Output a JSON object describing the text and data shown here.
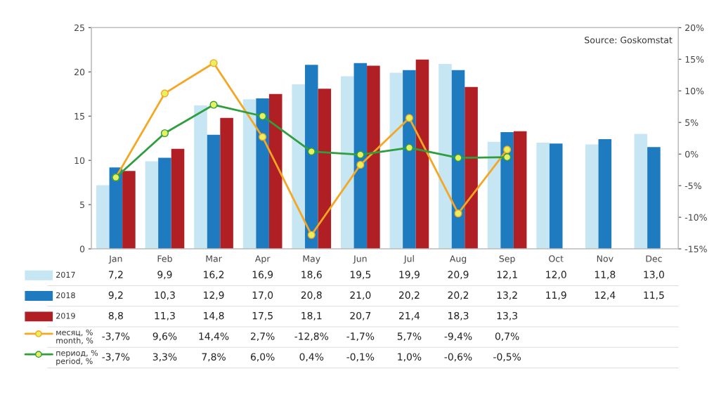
{
  "chart_data": {
    "type": "bar",
    "categories": [
      "Jan",
      "Feb",
      "Mar",
      "Apr",
      "May",
      "Jun",
      "Jul",
      "Aug",
      "Sep",
      "Oct",
      "Nov",
      "Dec"
    ],
    "series": [
      {
        "name": "2017",
        "color": "#c5e6f2",
        "values": [
          7.2,
          9.9,
          16.2,
          16.9,
          18.6,
          19.5,
          19.9,
          20.9,
          12.1,
          12.0,
          11.8,
          13.0
        ],
        "value_labels": [
          "7,2",
          "9,9",
          "16,2",
          "16,9",
          "18,6",
          "19,5",
          "19,9",
          "20,9",
          "12,1",
          "12,0",
          "11,8",
          "13,0"
        ]
      },
      {
        "name": "2018",
        "color": "#1f7bc0",
        "values": [
          9.2,
          10.3,
          12.9,
          17.0,
          20.8,
          21.0,
          20.2,
          20.2,
          13.2,
          11.9,
          12.4,
          11.5
        ],
        "value_labels": [
          "9,2",
          "10,3",
          "12,9",
          "17,0",
          "20,8",
          "21,0",
          "20,2",
          "20,2",
          "13,2",
          "11,9",
          "12,4",
          "11,5"
        ]
      },
      {
        "name": "2019",
        "color": "#b01f24",
        "values": [
          8.8,
          11.3,
          14.8,
          17.5,
          18.1,
          20.7,
          21.4,
          18.3,
          13.3,
          null,
          null,
          null
        ],
        "value_labels": [
          "8,8",
          "11,3",
          "14,8",
          "17,5",
          "18,1",
          "20,7",
          "21,4",
          "18,3",
          "13,3",
          null,
          null,
          null
        ]
      },
      {
        "name": "месяц, %\nmonth, %",
        "type": "line",
        "axis": "y2",
        "color": "#f5a623",
        "marker": "circle",
        "values": [
          -3.7,
          9.6,
          14.4,
          2.7,
          -12.8,
          -1.7,
          5.7,
          -9.4,
          0.7,
          null,
          null,
          null
        ],
        "value_labels": [
          "-3,7%",
          "9,6%",
          "14,4%",
          "2,7%",
          "-12,8%",
          "-1,7%",
          "5,7%",
          "-9,4%",
          "0,7%",
          null,
          null,
          null
        ]
      },
      {
        "name": "период, %\nperiod, %",
        "type": "line",
        "axis": "y2",
        "color": "#2e9e3e",
        "marker": "circle",
        "values": [
          -3.7,
          3.3,
          7.8,
          6.0,
          0.4,
          -0.1,
          1.0,
          -0.6,
          -0.5,
          null,
          null,
          null
        ],
        "value_labels": [
          "-3,7%",
          "3,3%",
          "7,8%",
          "6,0%",
          "0,4%",
          "-0,1%",
          "1,0%",
          "-0,6%",
          "-0,5%",
          null,
          null,
          null
        ]
      }
    ],
    "ylim": [
      0,
      25
    ],
    "yticks": [
      0,
      5,
      10,
      15,
      20,
      25
    ],
    "y2lim": [
      -15,
      20
    ],
    "y2ticks": [
      {
        "value": -15,
        "label": "-15%"
      },
      {
        "value": -10,
        "label": "-10%"
      },
      {
        "value": -5,
        "label": "-5%"
      },
      {
        "value": 0,
        "label": "0%"
      },
      {
        "value": 5,
        "label": "5%"
      },
      {
        "value": 10,
        "label": "10%"
      },
      {
        "value": 15,
        "label": "15%"
      },
      {
        "value": 20,
        "label": "20%"
      }
    ],
    "legend": "bottom",
    "grid": false,
    "annotations": [
      "Source: Goskomstat"
    ]
  }
}
